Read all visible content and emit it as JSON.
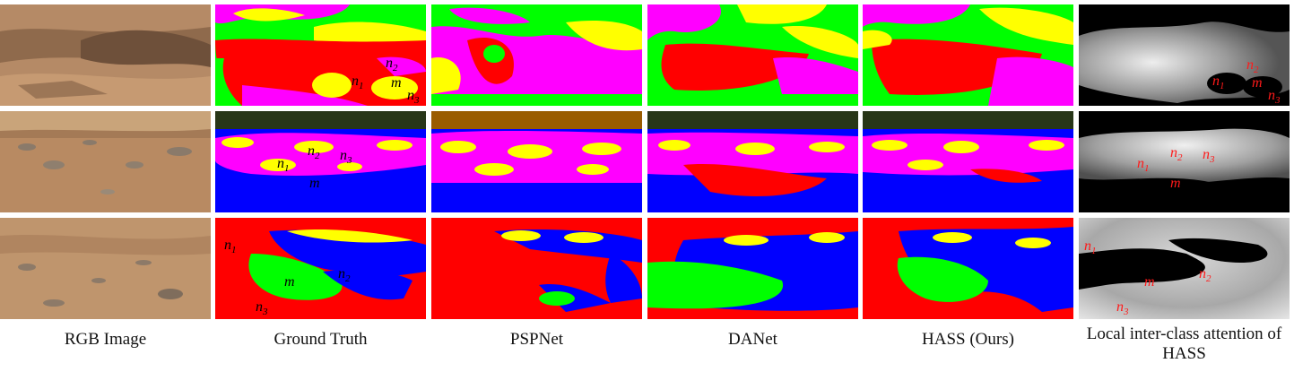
{
  "columns": [
    "RGB Image",
    "Ground Truth",
    "PSPNet",
    "DANet",
    "HASS (Ours)",
    "Local inter-class attention of HASS"
  ],
  "annotations": {
    "row1": {
      "m": "m",
      "n1": "1",
      "n2": "2",
      "n3": "3",
      "n": "n"
    },
    "row2": {
      "m": "m",
      "n1": "1",
      "n2": "2",
      "n3": "3",
      "n": "n"
    },
    "row3": {
      "m": "m",
      "n1": "1",
      "n2": "2",
      "n3": "3",
      "n": "n"
    }
  },
  "colors": {
    "red": "#ff0000",
    "green": "#00ff00",
    "blue": "#0000ff",
    "yellow": "#ffff00",
    "magenta": "#ff00ff",
    "dark_olive": "#283618",
    "brown": "#9a5c00",
    "soil": "#b88a62",
    "sky": "#c9a47a"
  }
}
